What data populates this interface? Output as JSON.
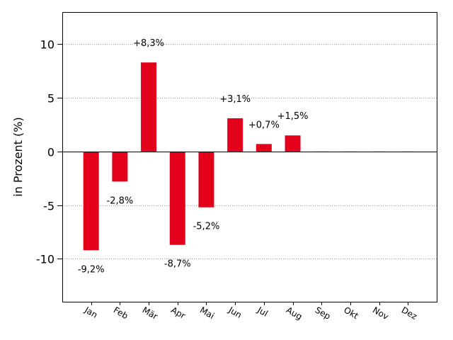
{
  "chart_data": {
    "type": "bar",
    "title": "",
    "xlabel": "",
    "ylabel": "in Prozent (%)",
    "categories": [
      "Jan",
      "Feb",
      "Mär",
      "Apr",
      "Mai",
      "Jun",
      "Jul",
      "Aug",
      "Sep",
      "Okt",
      "Nov",
      "Dez"
    ],
    "values": [
      -9.2,
      -2.8,
      8.3,
      -8.7,
      -5.2,
      3.1,
      0.7,
      1.5,
      0,
      0,
      0,
      0
    ],
    "data_labels": [
      "-9,2%",
      "-2,8%",
      "+8,3%",
      "-8,7%",
      "-5,2%",
      "+3,1%",
      "+0,7%",
      "+1,5%",
      "",
      "",
      "",
      ""
    ],
    "yticks": [
      10,
      5,
      0,
      -5,
      -10
    ],
    "ytick_labels": [
      "10",
      "5",
      "0",
      "-5",
      "-10"
    ],
    "ylim": [
      -14,
      13
    ],
    "grid": "horizontal-dotted",
    "bar_color": "#e2001a",
    "legend": "none"
  }
}
